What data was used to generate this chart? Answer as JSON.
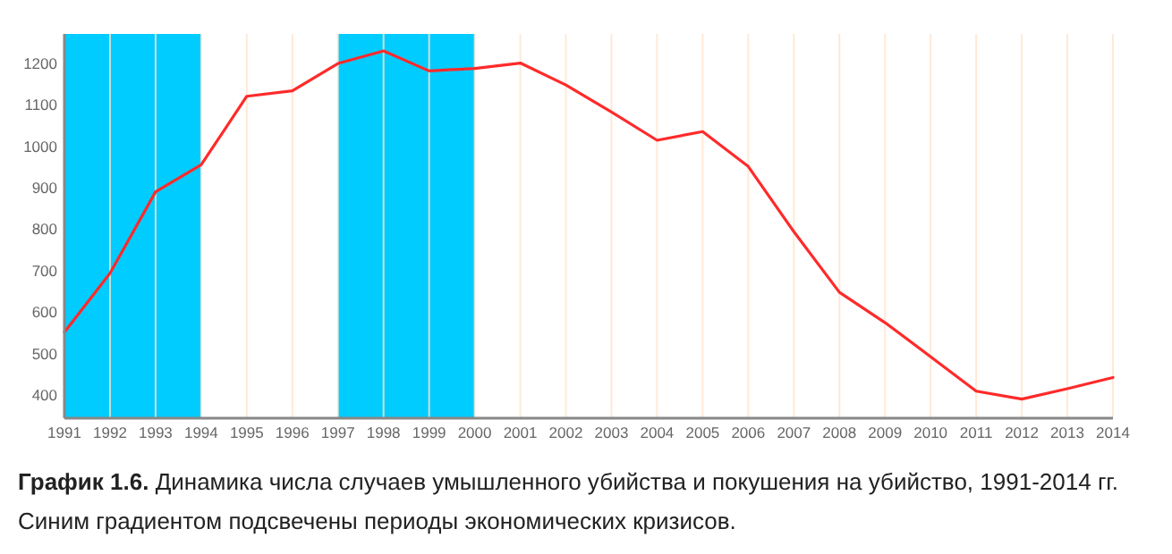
{
  "chart_data": {
    "type": "line",
    "x": [
      1991,
      1992,
      1993,
      1994,
      1995,
      1996,
      1997,
      1998,
      1999,
      2000,
      2001,
      2002,
      2003,
      2004,
      2005,
      2006,
      2007,
      2008,
      2009,
      2010,
      2011,
      2012,
      2013,
      2014
    ],
    "series": [
      {
        "color": "#ff2a2a",
        "values": [
          552,
          694,
          890,
          955,
          1120,
          1133,
          1199,
          1229,
          1181,
          1187,
          1200,
          1147,
          1082,
          1014,
          1035,
          951,
          794,
          648,
          575,
          493,
          410,
          391,
          416,
          443
        ]
      }
    ],
    "xlim": [
      1991,
      2014
    ],
    "xticks": [
      1991,
      1992,
      1993,
      1994,
      1995,
      1996,
      1997,
      1998,
      1999,
      2000,
      2001,
      2002,
      2003,
      2004,
      2005,
      2006,
      2007,
      2008,
      2009,
      2010,
      2011,
      2012,
      2013,
      2014
    ],
    "ylim": [
      345,
      1270
    ],
    "yticks": [
      400,
      500,
      600,
      700,
      800,
      900,
      1000,
      1100,
      1200
    ],
    "grid": "x",
    "marker": "none",
    "line_style": "solid",
    "bands": [
      {
        "axis": "x",
        "from": 1991,
        "to": 1994,
        "color": "#00ccff"
      },
      {
        "axis": "x",
        "from": 1997,
        "to": 2000,
        "color": "#00ccff"
      }
    ],
    "annotations": [
      "График 1.6.",
      "Динамика числа случаев умышленного убийства и покушения на убийство, 1991-2014 гг. Синим градиентом подсвечены периоды экономических кризисов."
    ]
  }
}
